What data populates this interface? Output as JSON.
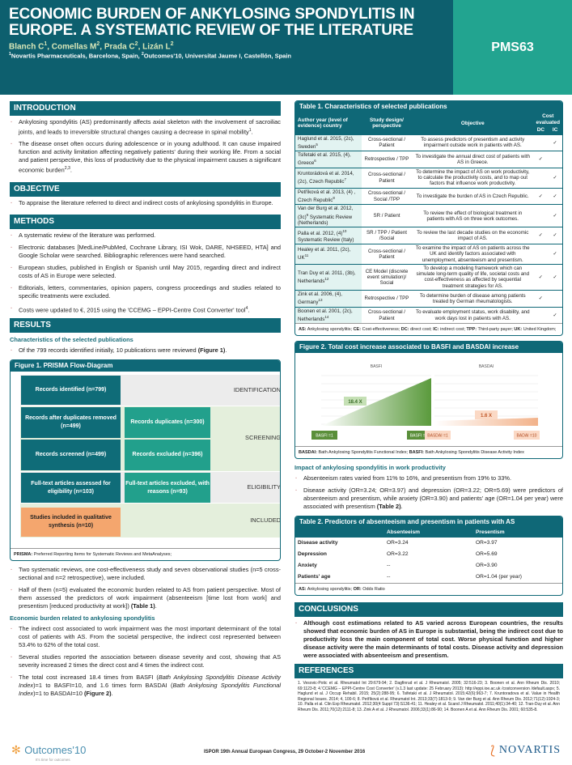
{
  "header": {
    "title": "ECONOMIC BURDEN OF ANKYLOSING SPONDYLITIS IN EUROPE. A SYSTEMATIC REVIEW OF THE LITERATURE",
    "authors": [
      {
        "t": "Blanch C"
      },
      {
        "t": "1",
        "s": "sup"
      },
      {
        "t": ", Comellas M"
      },
      {
        "t": "2",
        "s": "sup"
      },
      {
        "t": ", Prada C"
      },
      {
        "t": "2",
        "s": "sup"
      },
      {
        "t": ", Lizán L"
      },
      {
        "t": "2",
        "s": "sup"
      }
    ],
    "affiliations": [
      {
        "t": "1",
        "s": "sup"
      },
      {
        "t": "Novartis Pharmaceuticals, Barcelona, Spain, "
      },
      {
        "t": "2",
        "s": "sup"
      },
      {
        "t": "Outcomes'10, Universitat Jaume I, Castellón, Spain"
      }
    ],
    "code": "PMS63"
  },
  "introduction": {
    "title": "INTRODUCTION",
    "bullets": [
      [
        {
          "t": "Ankylosing spondylitis (AS) predominantly affects axial skeleton with the involvement of sacroiliac joints, and leads to irreversible structural changes causing a decrease in spinal mobility"
        },
        {
          "t": "1",
          "s": "sup"
        },
        {
          "t": "."
        }
      ],
      [
        {
          "t": "The disease onset often occurs during adolescence or in young adulthood. It can cause impaired function and activity limitation affecting negatively patients' during their working life. From a social and patient perspective, this loss of productivity due to the physical impairment causes a significant economic burden"
        },
        {
          "t": "2,3",
          "s": "sup"
        },
        {
          "t": "."
        }
      ]
    ]
  },
  "objective": {
    "title": "OBJECTIVE",
    "bullets": [
      [
        {
          "t": "To appraise the literature referred to direct and indirect costs of ankylosing spondylitis in Europe."
        }
      ]
    ]
  },
  "methods": {
    "title": "METHODS",
    "bullets": [
      [
        {
          "t": "A systematic review of the literature was performed."
        }
      ],
      [
        {
          "t": "Electronic databases [MedLine/PubMed, Cochrane Library, ISI Wok, DARE, NHSEED, HTA] and Google Scholar were searched. Bibliographic references were hand searched."
        }
      ],
      [
        {
          "t": "European studies, published in English or Spanish until May 2015, regarding direct and indirect costs of AS in Europe were selected."
        }
      ],
      [
        {
          "t": "Editorials, letters, commentaries, opinion papers, congress proceedings and studies related to specific treatments were excluded."
        }
      ],
      [
        {
          "t": "Costs were updated to €, 2015 using the 'CCEMG – EPPI-Centre Cost Converter' tool"
        },
        {
          "t": "4",
          "s": "sup"
        },
        {
          "t": "."
        }
      ]
    ]
  },
  "results": {
    "title": "RESULTS",
    "sub1": "Characteristics of the selected publications",
    "bullets1": [
      [
        {
          "t": "Of the 799 records identified initially, 10 publications were reviewed "
        },
        {
          "t": "(Figure 1)",
          "s": "b"
        },
        {
          "t": "."
        }
      ]
    ],
    "bullets2": [
      [
        {
          "t": "Two systematic reviews, one cost-effectiveness study and seven observational studies (n=5 cross-sectional and n=2 retrospective), were included."
        }
      ],
      [
        {
          "t": "Half of them (n=5) evaluated the economic burden related to AS from patient perspective. Most of them assessed the predictors of work impairment (absenteeism [time lost from work] and presentism [reduced productivity at work]) "
        },
        {
          "t": "(Table 1)",
          "s": "b"
        },
        {
          "t": "."
        }
      ]
    ],
    "sub2": "Economic burden related to ankylosing spondylitis",
    "bullets3": [
      [
        {
          "t": "The indirect cost associated to work impairment was the most important determinant of the total cost of patients with AS. From the societal perspective, the indirect cost represented between 53.4% to 62% of the total cost."
        }
      ],
      [
        {
          "t": "Several studies reported the association between disease severity and cost, showing that AS severity increased 2 times the direct cost and 4 times the indirect cost."
        }
      ],
      [
        {
          "t": "The total cost increased 18.4 times from BASFI ("
        },
        {
          "t": "Bath Ankylosing Spondylitis Disease Activity Index",
          "s": "i"
        },
        {
          "t": ")=1 to BASFI=10, and 1.6 times form BASDAI ("
        },
        {
          "t": "Bath Ankylosing Spondylitis Functional Index",
          "s": "i"
        },
        {
          "t": ")=1 to BASDAI=10 "
        },
        {
          "t": "(Figure 2)",
          "s": "b"
        },
        {
          "t": "."
        }
      ]
    ],
    "sub3": "Impact of ankylosing spondylitis in work productivity",
    "bullets4": [
      [
        {
          "t": "Absenteeism rates varied from 11% to 16%, and presentism from 19% to 33%."
        }
      ],
      [
        {
          "t": "Disease activity (OR=3.24; OR=3.97) and depression (OR=3.22; OR=5.69) were predictors of absenteeism and presentism, while anxiety (OR=3.90) and patients' age (OR=1.04 per year) were associated with presentism "
        },
        {
          "t": "(Table 2)",
          "s": "b"
        },
        {
          "t": "."
        }
      ]
    ]
  },
  "figure1": {
    "title": "Figure 1. PRISMA Flow-Diagram",
    "stages": [
      "IDENTIFICATION",
      "SCREENING",
      "ELIGIBILITY",
      "INCLUDED"
    ],
    "boxes": {
      "identified": "Records identified (n=799)",
      "after_dup": "Records after duplicates removed (n=499)",
      "duplicates": "Records duplicates (n=300)",
      "screened": "Records screened (n=499)",
      "excluded": "Records excluded (n=396)",
      "fulltext": "Full-text articles assessed for eligibility (n=103)",
      "ft_excluded": "Full-text articles excluded, with reasons (n=93)",
      "included": "Studies included in qualitative synthesis (n=10)"
    },
    "note_b": "PRISMA:",
    "note": " Preferred Reporting Items for Systematic Reviews and MetaAnalyses;"
  },
  "table1": {
    "title": "Table 1. Characteristics of selected publications",
    "headers": {
      "author": "Author year (level of evidence) country",
      "design": "Study design/ perspective",
      "objective": "Objective",
      "cost": "Cost evaluated",
      "dc": "DC",
      "ic": "IC"
    },
    "check": "✓",
    "rows": [
      {
        "author": "Haglund et al. 2015, (2c), Sweden",
        "sup": "5",
        "design": "Cross-sectional / Patient",
        "objective": "To assess predictors of presentism and activity impairment outside work in patients with AS.",
        "dc": false,
        "ic": true
      },
      {
        "author": "Tsifetaki et al. 2015, (4), Greece",
        "sup": "6",
        "design": "Retrospective / TPP",
        "objective": "To investigate the annual direct cost of patients with AS in Greece.",
        "dc": true,
        "ic": false
      },
      {
        "author": "Kruntorádová et al. 2014, (2c), Czech Republic",
        "sup": "7",
        "design": "Cross-sectional / Patient",
        "objective": "To determine the impact of AS on work productivity, to calculate the productivity costs, and to map out factors that influence work productivity.",
        "dc": false,
        "ic": true
      },
      {
        "author": "Petříková et al. 2013, (4) , Czech Republic",
        "sup": "8",
        "design": "Cross-sectional / Social /TPP",
        "objective": "To investigate the burden of AS in Czech Republic.",
        "dc": true,
        "ic": true
      },
      {
        "author": "Van der Burg et al. 2012, (3c)",
        "sup": "9",
        "author2": " Systematic Review (Netherlands)",
        "design": "SR / Patient",
        "objective": "To review the effect of biological treatment in patients with AS on three work outcomes.",
        "dc": false,
        "ic": true
      },
      {
        "author": "Palla et al. 2012, (4)",
        "sup": "10",
        "author2": " Systematic Review (Italy)",
        "design": "SR / TPP / Patient /Social",
        "objective": "To review the last decade studies on the economic impact of AS.",
        "dc": true,
        "ic": true
      },
      {
        "author": "Healey et al. 2011, (2c), UK",
        "sup": "11",
        "design": "Cross-sectional / Patient",
        "objective": "To examine the impact of AS on patients across the UK and identify factors associated with unemployment, absenteeism and presentism.",
        "dc": false,
        "ic": true
      },
      {
        "author": "Tran Duy et al. 2011, (3b), Netherlands",
        "sup": "12",
        "design": "CE Model (discrete event simulation)/ Social",
        "objective": "To develop a modeling framework which can simulate long-term quality of life, societal costs and cost-effectiveness as affected by sequential treatment strategies for AS.",
        "dc": true,
        "ic": true
      },
      {
        "author": "Zink et al. 2006, (4), Germany",
        "sup": "13",
        "design": "Retrospective / TPP",
        "objective": "To determine burden of disease among patients treated by German rheumatologists.",
        "dc": true,
        "ic": false
      },
      {
        "author": "Boonen et al. 2001, (2c), Netherlands",
        "sup": "14",
        "design": "Cross-sectional / Patient",
        "objective": "To evaluate employment status, work disability, and work days lost in patients with AS.",
        "dc": false,
        "ic": true
      }
    ],
    "note": [
      {
        "t": "AS:",
        "s": "b"
      },
      {
        "t": " Ankylosing spondylitis; "
      },
      {
        "t": "CE:",
        "s": "b"
      },
      {
        "t": " Cost-effectiveness; "
      },
      {
        "t": "DC:",
        "s": "b"
      },
      {
        "t": " direct cost; "
      },
      {
        "t": "IC:",
        "s": "b"
      },
      {
        "t": " indirect cost; "
      },
      {
        "t": "TPP:",
        "s": "b"
      },
      {
        "t": " Third-party payer; "
      },
      {
        "t": "UK:",
        "s": "b"
      },
      {
        "t": " United Kingdom;"
      }
    ]
  },
  "figure2": {
    "title": "Figure 2. Total cost increase associated to BASFI and BASDAI increase",
    "chart_data": {
      "type": "area",
      "panels": [
        {
          "title": "BASFI",
          "start_label": "BASFI =1",
          "end_label": "BASFI =10",
          "multiplier": 18.4,
          "label": "18.4 X",
          "color": "#5a9a3c"
        },
        {
          "title": "BASDAI",
          "start_label": "BASDAI =1",
          "end_label": "BADAI =10",
          "multiplier": 1.6,
          "label": "1.6 X",
          "color": "#f2b28a"
        }
      ],
      "grid": true
    },
    "note": [
      {
        "t": "BASDAI:",
        "s": "b"
      },
      {
        "t": " Bath Ankylosing Spondylitis Functional Index; "
      },
      {
        "t": "BASFI:",
        "s": "b"
      },
      {
        "t": " Bath Ankylosing Spondylitis Disease Activity Index"
      }
    ]
  },
  "table2": {
    "title": "Table 2. Predictors of absenteeism and presentism in patients with AS",
    "headers": [
      "",
      "Absenteeism",
      "Presentism"
    ],
    "rows": [
      [
        "Disease activity",
        "OR=3.24",
        "OR=3.97"
      ],
      [
        "Depression",
        "OR=3.22",
        "OR=5.69"
      ],
      [
        "Anxiety",
        "--",
        "OR=3.90"
      ],
      [
        "Patients' age",
        "--",
        "OR=1.04 (per year)"
      ]
    ],
    "note": [
      {
        "t": "AS:",
        "s": "b"
      },
      {
        "t": " Ankylosing spondylitis; "
      },
      {
        "t": "OR:",
        "s": "b"
      },
      {
        "t": " Odds Ratio"
      }
    ]
  },
  "conclusions": {
    "title": "CONCLUSIONS",
    "bullets": [
      [
        {
          "t": "Although cost estimations related to AS varied across European countries, the results showed that economic burden of AS in Europe is substantial, being the indirect cost due to productivity loss the main component of total cost. Worse physical function and higher disease activity were the main determinants of total costs. Disease activity and depression were associated with absenteeism and presentism."
        }
      ]
    ]
  },
  "references": {
    "title": "REFERENCES",
    "text": "1. Vesovic-Potic et al. Rheumatol Int 29:679-94; 2. Dagfinrud et al. J Rheumatol. 2005; 32:516-23; 3. Boonen et al. Ann Rheum Dis. 2010; 69:1123-8; 4.'CCEMG – EPPI-Centre Cost Converter' (v.1.3 last update: 25 February 2013): http://eppi.ioe.ac.uk /costconversion /default.aspx; 5. Haglund et al. J Occup Rehabil. 2015; 25(2):288-95; 6. Tsifetaki et al. J Rheumatol. 2015;42(6):963-7; 7. Kruntoradova et al. Value in Health Regional Issues. 2014; 4, 100-6; 8. Petříková et al. Rheumatol Int. 2013;33(7):1813-9; 9. Van der Burg et al. Ann Rheum Dis. 2012;71(12):1924-3; 10. Palla et al. Clin Exp Rheumatol. 2012;30(4 Suppl 73):S136-41; 11. Healey et al. Scand J Rheumatol. 2011;40(1):34-40; 12. Tran-Duy et al. Ann Rheum Dis. 2011;70(12):2111-8; 13. Zink A et al. J Rheumatol. 2006;33(1):86-90; 14. Boonen A et al. Ann Rheum Dis. 2001; 60:535-8."
  },
  "footer": {
    "logo_left": "Outcomes'10",
    "logo_left_tag": "It's time for outcomes",
    "congress": "ISPOR 19th Annual European Congress, 29 October-2 November 2016",
    "logo_right": "NOVARTIS"
  }
}
